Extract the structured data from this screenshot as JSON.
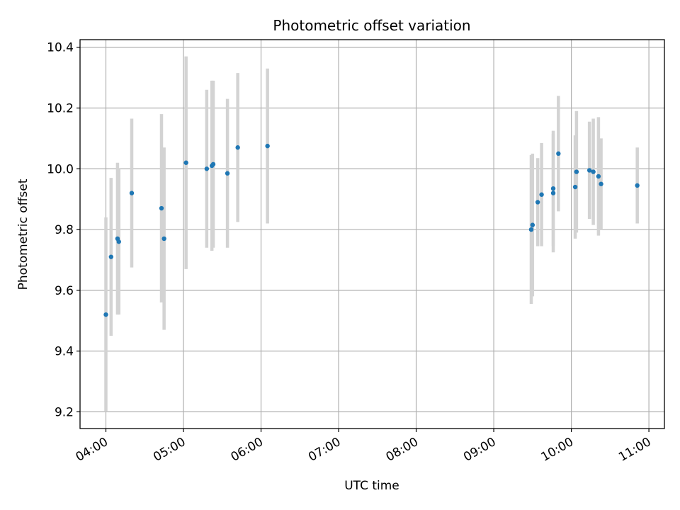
{
  "chart_data": {
    "type": "scatter",
    "title": "Photometric offset variation",
    "xlabel": "UTC time",
    "ylabel": "Photometric offset",
    "x_axis": "time",
    "xlim": [
      "03:40",
      "11:12"
    ],
    "ylim": [
      9.145,
      10.425
    ],
    "x_ticks": [
      "04:00",
      "05:00",
      "06:00",
      "07:00",
      "08:00",
      "09:00",
      "10:00",
      "11:00"
    ],
    "y_ticks": [
      9.2,
      9.4,
      9.6,
      9.8,
      10.0,
      10.2,
      10.4
    ],
    "y_tick_labels": [
      "9.2",
      "9.4",
      "9.6",
      "9.8",
      "10.0",
      "10.2",
      "10.4"
    ],
    "grid": true,
    "point_color": "#1f77b4",
    "errorbar_color": "#d3d3d3",
    "points": [
      {
        "x": "04:00",
        "y": 9.52,
        "yerr": 0.32
      },
      {
        "x": "04:04",
        "y": 9.71,
        "yerr": 0.26
      },
      {
        "x": "04:09",
        "y": 9.77,
        "yerr": 0.25
      },
      {
        "x": "04:10",
        "y": 9.76,
        "yerr": 0.24
      },
      {
        "x": "04:20",
        "y": 9.92,
        "yerr": 0.245
      },
      {
        "x": "04:43",
        "y": 9.87,
        "yerr": 0.31
      },
      {
        "x": "04:45",
        "y": 9.77,
        "yerr": 0.3
      },
      {
        "x": "05:02",
        "y": 10.02,
        "yerr": 0.35
      },
      {
        "x": "05:18",
        "y": 10.0,
        "yerr": 0.26
      },
      {
        "x": "05:22",
        "y": 10.01,
        "yerr": 0.28
      },
      {
        "x": "05:23",
        "y": 10.015,
        "yerr": 0.275
      },
      {
        "x": "05:34",
        "y": 9.985,
        "yerr": 0.245
      },
      {
        "x": "05:42",
        "y": 10.07,
        "yerr": 0.245
      },
      {
        "x": "06:05",
        "y": 10.075,
        "yerr": 0.255
      },
      {
        "x": "09:29",
        "y": 9.8,
        "yerr": 0.245
      },
      {
        "x": "09:30",
        "y": 9.815,
        "yerr": 0.235
      },
      {
        "x": "09:34",
        "y": 9.89,
        "yerr": 0.145
      },
      {
        "x": "09:37",
        "y": 9.915,
        "yerr": 0.17
      },
      {
        "x": "09:46",
        "y": 9.92,
        "yerr": 0.195
      },
      {
        "x": "09:46",
        "y": 9.935,
        "yerr": 0.19
      },
      {
        "x": "09:50",
        "y": 10.05,
        "yerr": 0.19
      },
      {
        "x": "10:03",
        "y": 9.94,
        "yerr": 0.17
      },
      {
        "x": "10:04",
        "y": 9.99,
        "yerr": 0.2
      },
      {
        "x": "10:14",
        "y": 9.995,
        "yerr": 0.16
      },
      {
        "x": "10:17",
        "y": 9.99,
        "yerr": 0.175
      },
      {
        "x": "10:21",
        "y": 9.975,
        "yerr": 0.195
      },
      {
        "x": "10:23",
        "y": 9.95,
        "yerr": 0.15
      },
      {
        "x": "10:51",
        "y": 9.945,
        "yerr": 0.125
      }
    ]
  }
}
